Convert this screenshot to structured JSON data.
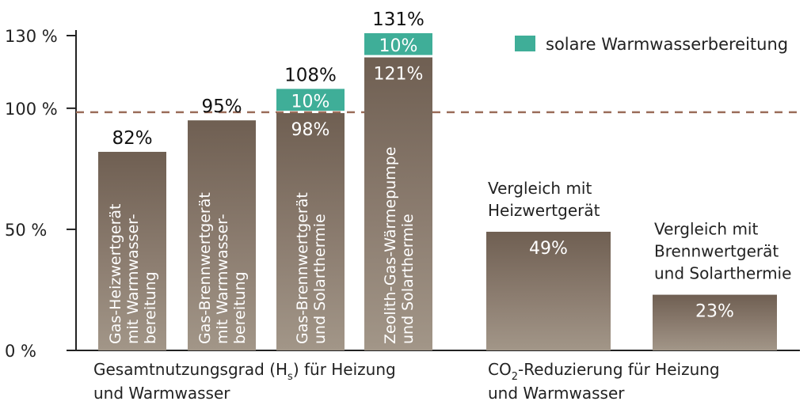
{
  "chart_data": {
    "type": "bar",
    "stacked": true,
    "ylim": [
      0,
      130
    ],
    "y_ticks": [
      "0 %",
      "50 %",
      "100 %",
      "130 %"
    ],
    "y_tick_values": [
      0,
      50,
      100,
      130
    ],
    "reference_line": 100,
    "colors": {
      "base": "#8a7a6c",
      "solar": "#3fae98",
      "dashed_line": "#9a6d5a",
      "axis": "#222222"
    },
    "legend": {
      "label": "solare Warmwasserbereitung",
      "placement": "top-right"
    },
    "groups": [
      {
        "label_lines": [
          "Gesamtnutzungsgrad (H",
          "s",
          ") für Heizung",
          "und Warmwasser"
        ]
      },
      {
        "label_lines": [
          "CO",
          "2",
          "-Reduzierung für Heizung",
          "und Warmwasser"
        ]
      }
    ],
    "bars": [
      {
        "group": 0,
        "base": 82,
        "solar": 0,
        "top_label": "82%",
        "base_label": "",
        "solar_label": "",
        "text_lines": [
          "Gas-Heizwertgerät",
          "mit Warmwasser-",
          "bereitung"
        ]
      },
      {
        "group": 0,
        "base": 95,
        "solar": 0,
        "top_label": "95%",
        "base_label": "",
        "solar_label": "",
        "text_lines": [
          "Gas-Brennwertgerät",
          "mit Warmwasser-",
          "bereitung"
        ]
      },
      {
        "group": 0,
        "base": 98,
        "solar": 10,
        "top_label": "108%",
        "base_label": "98%",
        "solar_label": "10%",
        "text_lines": [
          "Gas-Brennwertgerät",
          "und Solarthermie"
        ]
      },
      {
        "group": 0,
        "base": 121,
        "solar": 10,
        "top_label": "131%",
        "base_label": "121%",
        "solar_label": "10%",
        "text_lines": [
          "Zeolith-Gas-Wärmepumpe",
          "und Solarthermie"
        ]
      },
      {
        "group": 1,
        "base": 49,
        "solar": 0,
        "top_label": "",
        "base_label": "49%",
        "solar_label": "",
        "caption_lines": [
          "Vergleich mit",
          "Heizwertgerät"
        ]
      },
      {
        "group": 1,
        "base": 23,
        "solar": 0,
        "top_label": "",
        "base_label": "23%",
        "solar_label": "",
        "caption_lines": [
          "Vergleich mit",
          "Brennwertgerät",
          "und Solarthermie"
        ]
      }
    ]
  }
}
